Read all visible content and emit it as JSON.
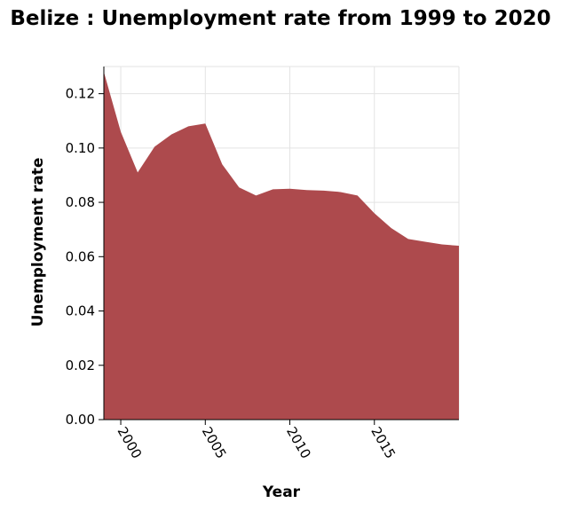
{
  "chart_data": {
    "type": "area",
    "title": "Belize : Unemployment rate from 1999 to 2020",
    "xlabel": "Year",
    "ylabel": "Unemployment rate",
    "xlim": [
      1999,
      2020
    ],
    "ylim": [
      0,
      0.13
    ],
    "x_ticks": [
      2000,
      2005,
      2010,
      2015
    ],
    "y_ticks": [
      "0.00",
      "0.02",
      "0.04",
      "0.06",
      "0.08",
      "0.10",
      "0.12"
    ],
    "grid": true,
    "legend": "none",
    "fill_color": "#ad4a4d",
    "x": [
      1999,
      2000,
      2001,
      2002,
      2003,
      2004,
      2005,
      2006,
      2007,
      2008,
      2009,
      2010,
      2011,
      2012,
      2013,
      2014,
      2015,
      2016,
      2017,
      2018,
      2019,
      2020
    ],
    "values": [
      0.128,
      0.106,
      0.091,
      0.1005,
      0.105,
      0.108,
      0.109,
      0.094,
      0.0855,
      0.0825,
      0.0848,
      0.085,
      0.0845,
      0.0843,
      0.0838,
      0.0825,
      0.076,
      0.0705,
      0.0665,
      0.0655,
      0.0645,
      0.064
    ]
  }
}
